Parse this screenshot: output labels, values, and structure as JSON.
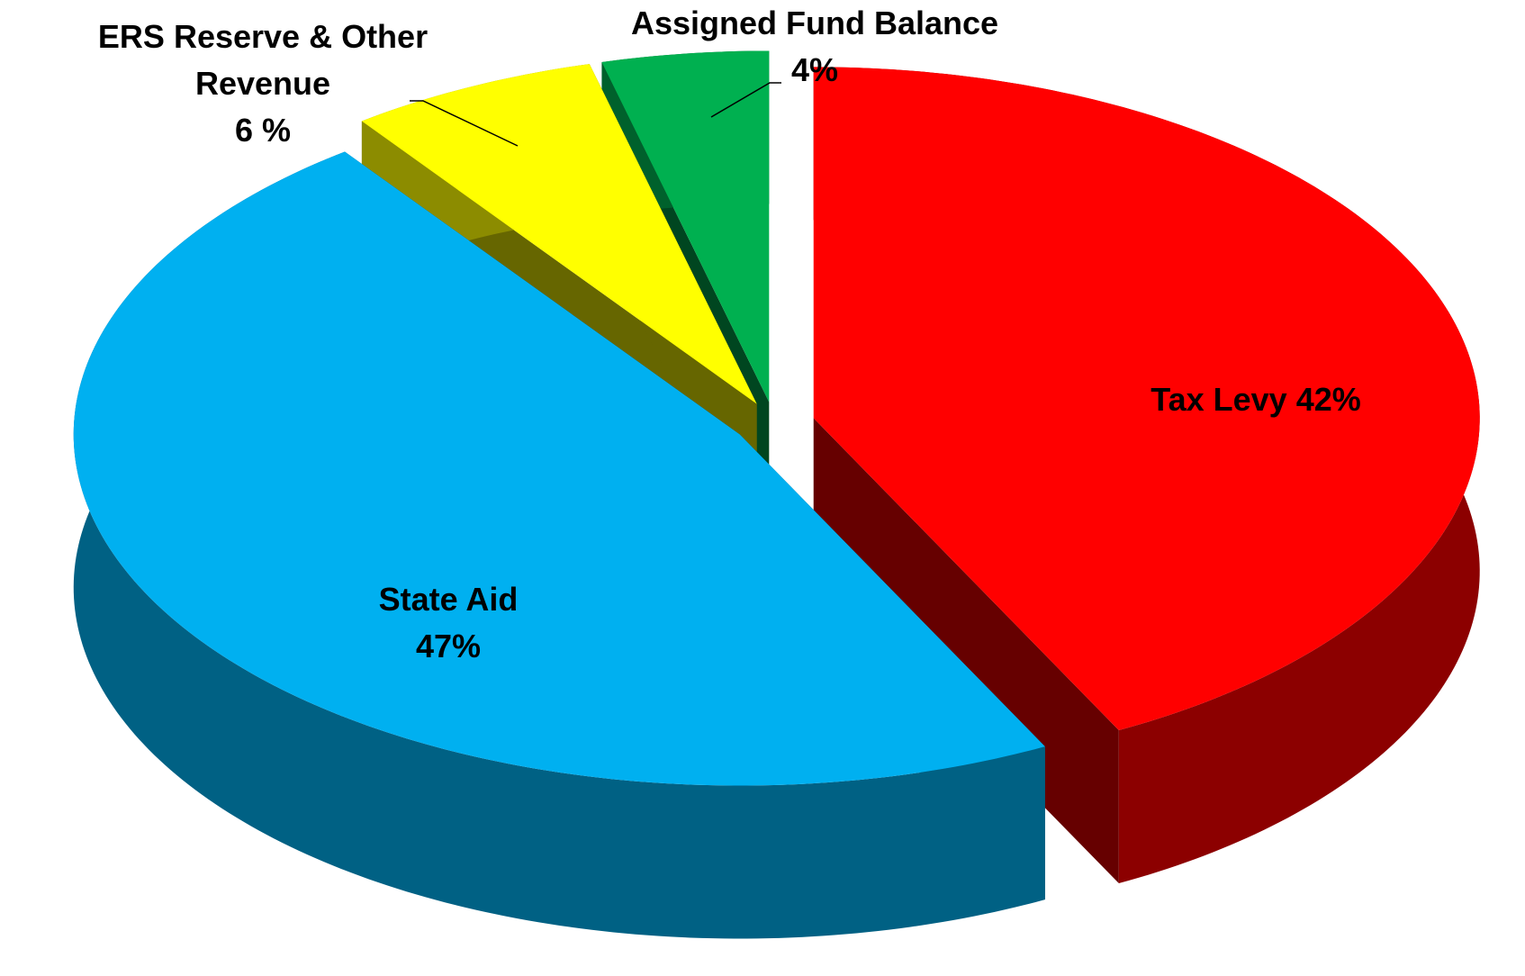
{
  "chart_data": {
    "type": "pie3d",
    "categories": [
      "Tax Levy",
      "State Aid",
      "ERS Reserve & Other Revenue",
      "Assigned Fund Balance"
    ],
    "values": [
      42,
      47,
      6,
      4
    ],
    "value_labels": [
      "42%",
      "47%",
      "6 %",
      "4%"
    ],
    "colors": [
      "#ff0000",
      "#00b0f0",
      "#ffff00",
      "#00b050"
    ]
  }
}
